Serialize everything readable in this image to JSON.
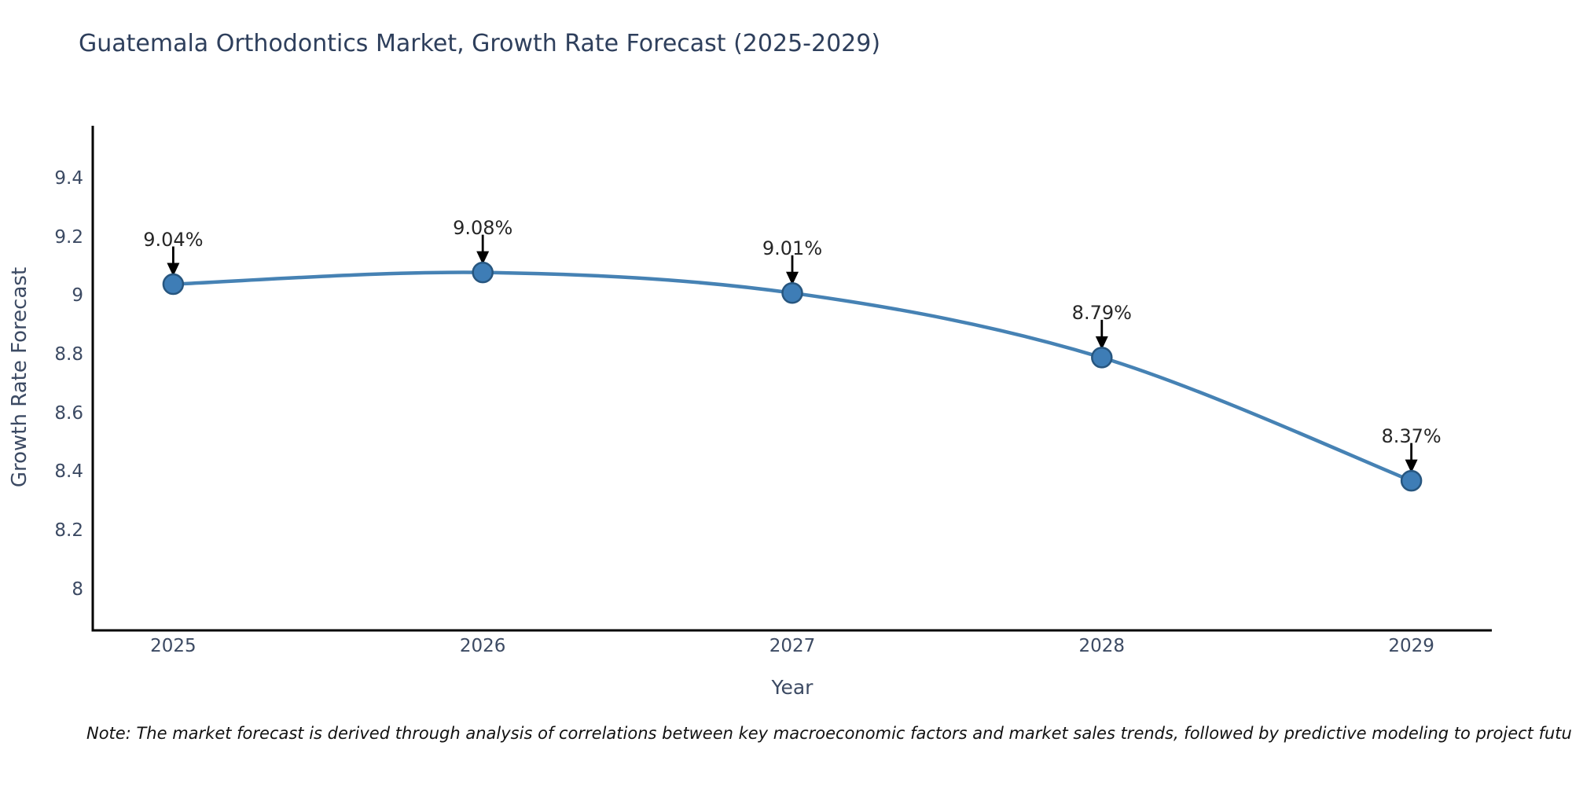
{
  "chart_data": {
    "type": "line",
    "title": "Guatemala Orthodontics Market, Growth Rate Forecast (2025-2029)",
    "xlabel": "Year",
    "ylabel": "Growth Rate Forecast",
    "x": [
      2025,
      2026,
      2027,
      2028,
      2029
    ],
    "series": [
      {
        "name": "Growth Rate Forecast",
        "values": [
          9.04,
          9.08,
          9.01,
          8.79,
          8.37
        ]
      }
    ],
    "point_labels": [
      "9.04%",
      "9.08%",
      "9.01%",
      "8.79%",
      "8.37%"
    ],
    "xtick_labels": [
      "2025",
      "2026",
      "2027",
      "2028",
      "2029"
    ],
    "ytick_values": [
      8,
      8.2,
      8.4,
      8.6,
      8.8,
      9,
      9.2,
      9.4
    ],
    "ytick_labels": [
      "8",
      "8.2",
      "8.4",
      "8.6",
      "8.8",
      "9",
      "9.2",
      "9.4"
    ],
    "xlim": [
      2024.74,
      2029.26
    ],
    "ylim": [
      7.86,
      9.58
    ],
    "grid": false,
    "legend": false,
    "line_shape": "spline",
    "annotation_style": "value-above-with-down-arrow",
    "colors": {
      "line": "#4682b4",
      "marker_fill": "#3e7db6",
      "marker_edge": "#27567f",
      "axis": "#000000",
      "title_text": "#2e3f5c",
      "tick_text": "#3c4a63",
      "annotation_text": "#262626",
      "arrow": "#000000"
    }
  },
  "note": "Note: The market forecast is derived through analysis of correlations between key macroeconomic factors and market sales trends, followed by predictive modeling to project future sales"
}
